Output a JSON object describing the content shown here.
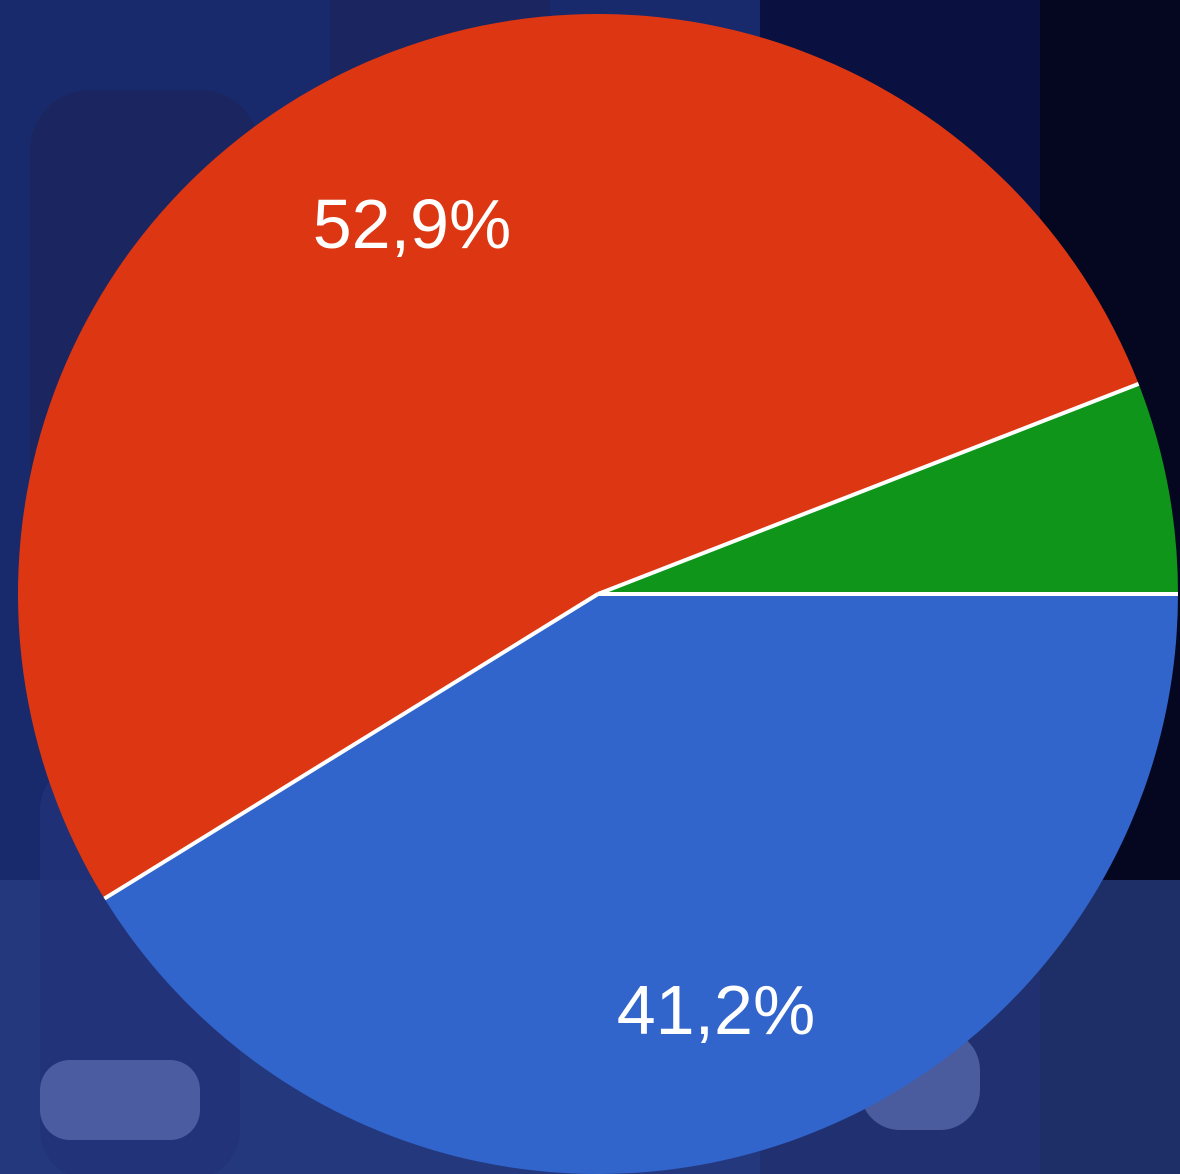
{
  "chart_data": {
    "type": "pie",
    "slices": [
      {
        "label": "",
        "value": 52.9,
        "display": "52,9%",
        "color": "#dc3712"
      },
      {
        "label": "",
        "value": 41.2,
        "display": "41,2%",
        "color": "#3165cb"
      },
      {
        "label": "",
        "value": 5.9,
        "display": "",
        "color": "#0f951a"
      }
    ],
    "colors": {
      "background": "#16256a",
      "separator": "#ffffff"
    }
  }
}
